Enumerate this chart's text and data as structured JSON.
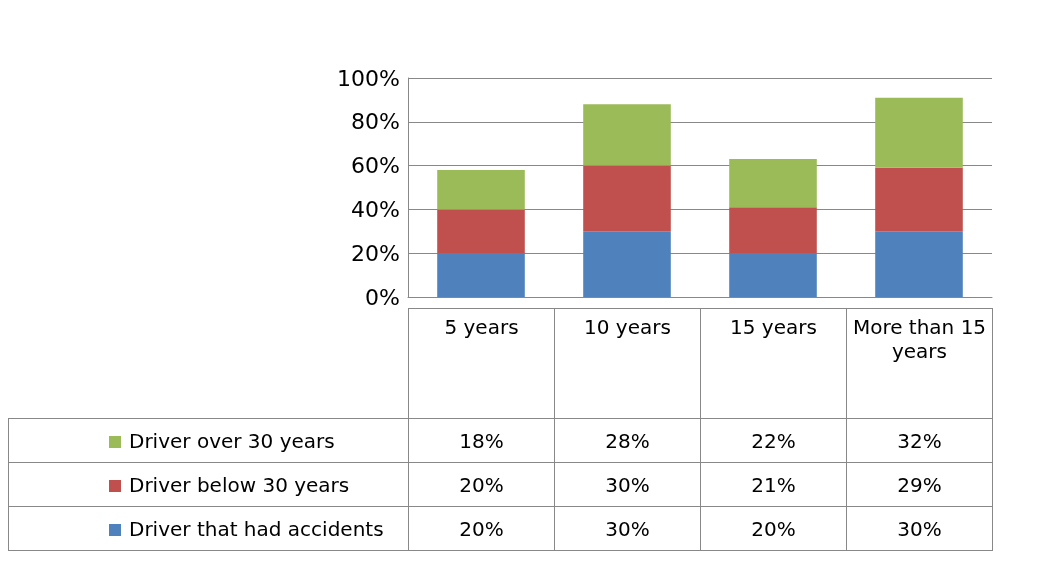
{
  "chart_data": {
    "type": "bar",
    "stacked": true,
    "categories": [
      "5 years",
      "10 years",
      "15 years",
      "More than 15 years"
    ],
    "series": [
      {
        "name": "Driver that had accidents",
        "color": "#4f81bd",
        "values": [
          20,
          30,
          20,
          30
        ],
        "value_labels": [
          "20%",
          "30%",
          "20%",
          "30%"
        ]
      },
      {
        "name": "Driver below 30 years",
        "color": "#c0504d",
        "values": [
          20,
          30,
          21,
          29
        ],
        "value_labels": [
          "20%",
          "30%",
          "21%",
          "29%"
        ]
      },
      {
        "name": "Driver over 30 years",
        "color": "#9bbb59",
        "values": [
          18,
          28,
          22,
          32
        ],
        "value_labels": [
          "18%",
          "28%",
          "22%",
          "32%"
        ]
      }
    ],
    "ylim": [
      0,
      100
    ],
    "yticks": [
      {
        "value": 0,
        "label": "0%"
      },
      {
        "value": 20,
        "label": "20%"
      },
      {
        "value": 40,
        "label": "40%"
      },
      {
        "value": 60,
        "label": "60%"
      },
      {
        "value": 80,
        "label": "80%"
      },
      {
        "value": 100,
        "label": "100%"
      }
    ],
    "grid": "y",
    "legend": "bottom left"
  }
}
